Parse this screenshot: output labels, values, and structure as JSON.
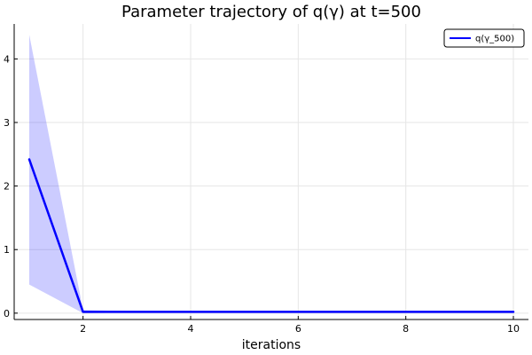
{
  "chart_data": {
    "type": "line",
    "title": "Parameter trajectory of q(γ) at t=500",
    "xlabel": "iterations",
    "ylabel": "",
    "xlim": [
      0.72,
      10.28
    ],
    "ylim": [
      -0.1,
      4.55
    ],
    "xticks": [
      2,
      4,
      6,
      8,
      10
    ],
    "yticks": [
      0,
      1,
      2,
      3,
      4
    ],
    "grid": true,
    "legend_position": "top-right",
    "series": [
      {
        "name": "q(γ_500)",
        "color": "#0000ff",
        "band_color": "#0000ff",
        "band_opacity": 0.2,
        "x": [
          1,
          2,
          3,
          4,
          5,
          6,
          7,
          8,
          9,
          10
        ],
        "y": [
          2.42,
          0.02,
          0.02,
          0.02,
          0.02,
          0.02,
          0.02,
          0.02,
          0.02,
          0.02
        ],
        "lower": [
          0.45,
          0.0,
          0.01,
          0.01,
          0.01,
          0.01,
          0.01,
          0.01,
          0.01,
          0.01
        ],
        "upper": [
          4.38,
          0.05,
          0.03,
          0.03,
          0.03,
          0.03,
          0.03,
          0.03,
          0.03,
          0.03
        ]
      }
    ]
  }
}
